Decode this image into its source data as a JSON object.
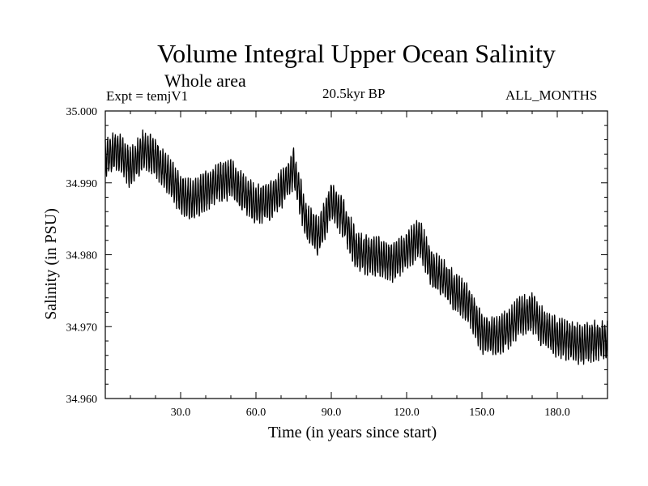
{
  "header": {
    "title": "Volume Integral Upper Ocean Salinity",
    "subtitle": "Whole area",
    "experiment": "Expt = temjV1",
    "period": "20.5kyr BP",
    "months": "ALL_MONTHS"
  },
  "chart_data": {
    "type": "line",
    "title": "Volume Integral Upper Ocean Salinity",
    "subtitle": "Whole area",
    "xlabel": "Time (in years since start)",
    "ylabel": "Salinity (in PSU)",
    "xlim": [
      0,
      200
    ],
    "ylim": [
      34.96,
      35.0
    ],
    "xticks": [
      30,
      60,
      90,
      120,
      150,
      180
    ],
    "xtick_labels": [
      "30.0",
      "60.0",
      "90.0",
      "120.0",
      "150.0",
      "180.0"
    ],
    "yticks": [
      34.96,
      34.97,
      34.98,
      34.99,
      35.0
    ],
    "ytick_labels": [
      "34.960",
      "34.970",
      "34.980",
      "34.990",
      "35.000"
    ],
    "grid": false,
    "series": [
      {
        "name": "Salinity",
        "description": "Monthly values with seasonal oscillation (~0.005 PSU peak-to-peak) around a declining trend",
        "x": [
          0,
          5,
          10,
          15,
          20,
          25,
          30,
          35,
          40,
          45,
          50,
          55,
          60,
          65,
          70,
          75,
          80,
          85,
          90,
          95,
          100,
          105,
          110,
          115,
          120,
          125,
          130,
          135,
          140,
          145,
          150,
          155,
          160,
          165,
          170,
          175,
          180,
          185,
          190,
          195,
          200
        ],
        "values": [
          34.9935,
          34.9945,
          34.992,
          34.9945,
          34.9935,
          34.991,
          34.9885,
          34.9875,
          34.989,
          34.99,
          34.9905,
          34.9885,
          34.987,
          34.9875,
          34.989,
          34.992,
          34.9845,
          34.9825,
          34.9875,
          34.985,
          34.9805,
          34.98,
          34.9795,
          34.979,
          34.9805,
          34.9825,
          34.978,
          34.9765,
          34.9745,
          34.973,
          34.969,
          34.9685,
          34.9695,
          34.9715,
          34.972,
          34.9695,
          34.9685,
          34.968,
          34.9675,
          34.968,
          34.968
        ]
      }
    ]
  },
  "axes": {
    "xlabel": "Time (in years since start)",
    "ylabel": "Salinity (in PSU)"
  }
}
